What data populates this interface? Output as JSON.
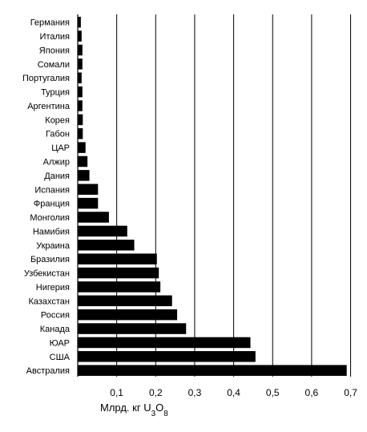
{
  "chart_data": {
    "type": "bar",
    "orientation": "horizontal",
    "title": "",
    "categories": [
      "Германия",
      "Италия",
      "Япония",
      "Сомали",
      "Португалия",
      "Турция",
      "Аргентина",
      "Корея",
      "Габон",
      "ЦАР",
      "Алжир",
      "Дания",
      "Испания",
      "Франция",
      "Монголия",
      "Намибия",
      "Украина",
      "Бразилия",
      "Узбекистан",
      "Нигерия",
      "Казахстан",
      "Россия",
      "Канада",
      "ЮАР",
      "США",
      "Австралия"
    ],
    "values": [
      0.008,
      0.01,
      0.012,
      0.012,
      0.01,
      0.012,
      0.012,
      0.013,
      0.013,
      0.02,
      0.025,
      0.03,
      0.052,
      0.052,
      0.08,
      0.127,
      0.145,
      0.203,
      0.208,
      0.212,
      0.242,
      0.255,
      0.278,
      0.443,
      0.456,
      0.69
    ],
    "xlim": [
      0,
      0.7
    ],
    "xticks": [
      "0,1",
      "0,2",
      "0,3",
      "0,4",
      "0,5",
      "0,6",
      "0,7"
    ],
    "xtick_values": [
      0.1,
      0.2,
      0.3,
      0.4,
      0.5,
      0.6,
      0.7
    ],
    "xlabel": {
      "text": "Млрд. кг U",
      "sub1": "3",
      "mid": "O",
      "sub2": "8"
    },
    "grid": "vertical",
    "bar_color": "#000000",
    "grid_color": "#000000"
  }
}
